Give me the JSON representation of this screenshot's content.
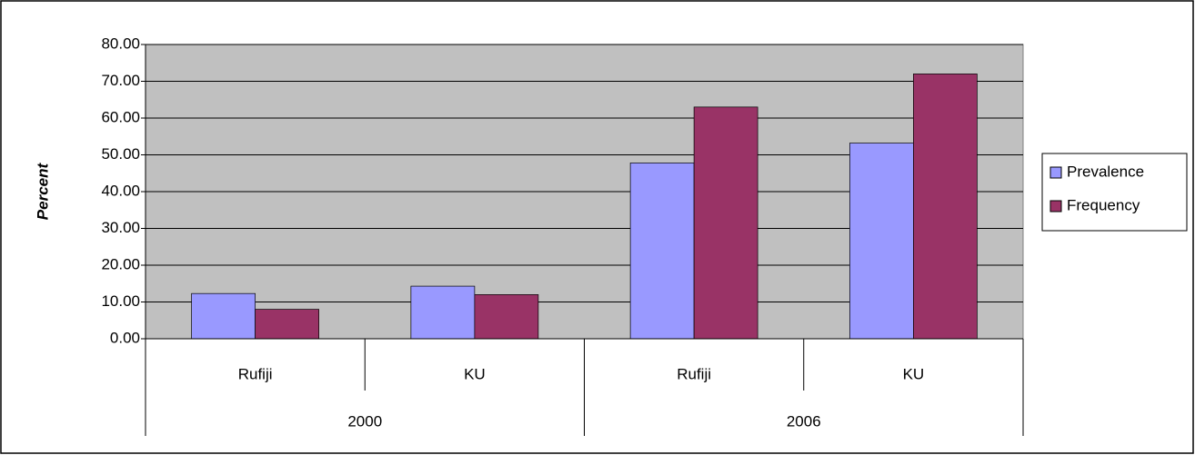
{
  "chart_data": {
    "type": "bar",
    "ylabel": "Percent",
    "categories": [
      "Rufiji",
      "KU",
      "Rufiji",
      "KU"
    ],
    "groups": [
      "2000",
      "2006"
    ],
    "series": [
      {
        "name": "Prevalence",
        "color": "#9999ff",
        "values": [
          12.3,
          14.3,
          47.8,
          53.2
        ]
      },
      {
        "name": "Frequency",
        "color": "#993366",
        "values": [
          8.0,
          12.0,
          63.0,
          72.0
        ]
      }
    ],
    "ylim": [
      0,
      80
    ],
    "yticks": [
      {
        "value": 0,
        "label": "0.00"
      },
      {
        "value": 10,
        "label": "10.00"
      },
      {
        "value": 20,
        "label": "20.00"
      },
      {
        "value": 30,
        "label": "30.00"
      },
      {
        "value": 40,
        "label": "40.00"
      },
      {
        "value": 50,
        "label": "50.00"
      },
      {
        "value": 60,
        "label": "60.00"
      },
      {
        "value": 70,
        "label": "70.00"
      },
      {
        "value": 80,
        "label": "80.00"
      }
    ],
    "grid": true,
    "legend": "right",
    "plot_background": "#c0c0c0"
  }
}
